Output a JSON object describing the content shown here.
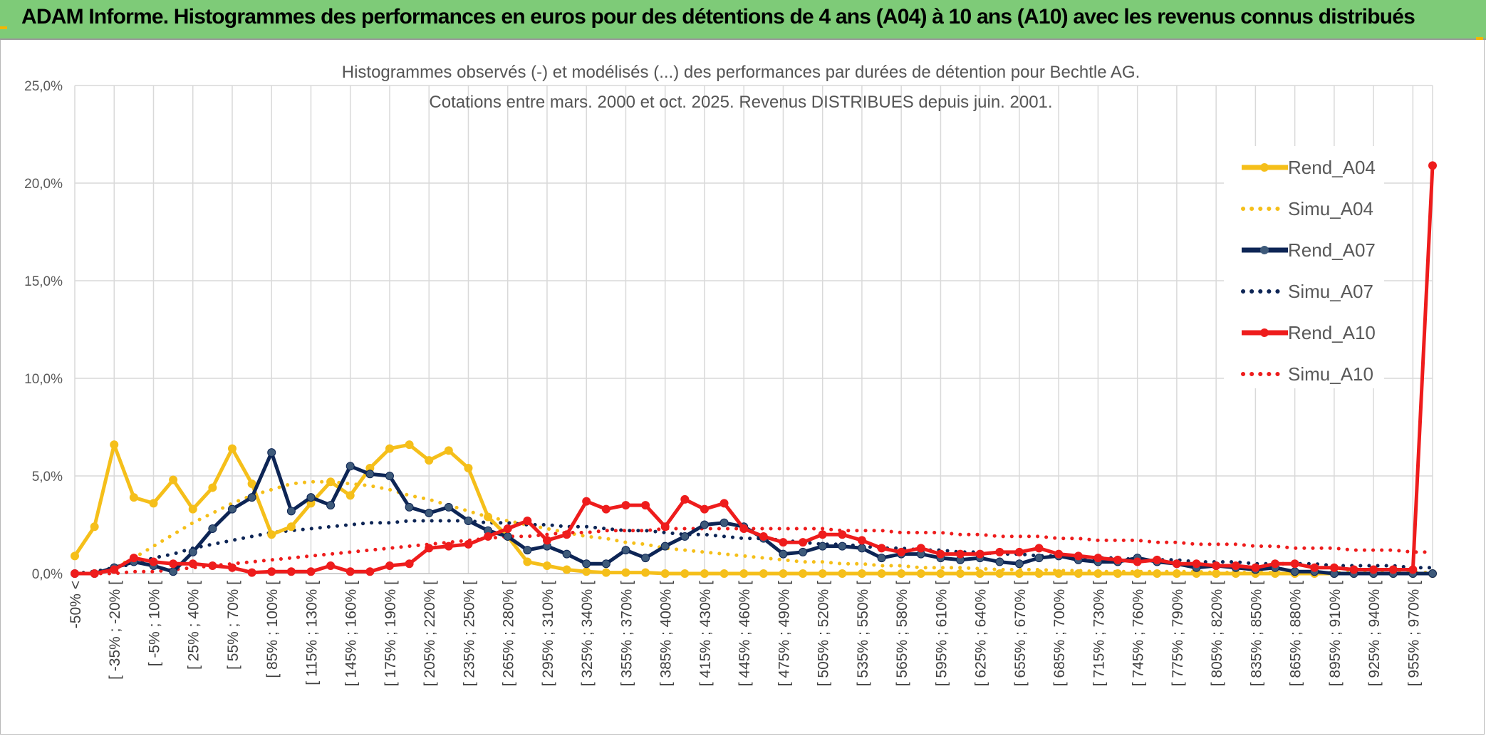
{
  "banner": {
    "title": "ADAM Informe. Histogrammes des performances en euros pour des détentions de 4 ans (A04) à 10 ans (A10) avec les revenus connus distribués"
  },
  "chart_data": {
    "type": "line",
    "title": "Histogrammes observés (-) et modélisés (...) des performances par durées de détention pour Bechtle AG.",
    "subtitle": "Cotations entre mars. 2000 et oct. 2025. Revenus DISTRIBUES depuis juin. 2001.",
    "xlabel": "",
    "ylabel": "",
    "ylim": [
      0,
      25
    ],
    "y_ticks": [
      "0,0%",
      "5,0%",
      "10,0%",
      "15,0%",
      "20,0%",
      "25,0%"
    ],
    "grid": true,
    "legend_position": "right",
    "x_tick_labels": [
      "-50% <",
      "[ -35% ; -20% [",
      "[ -5% ; 10% [",
      "[ 25% ; 40% [",
      "[ 55% ; 70% [",
      "[ 85% ; 100% [",
      "[ 115% ; 130% [",
      "[ 145% ; 160% [",
      "[ 175% ; 190% [",
      "[ 205% ; 220% [",
      "[ 235% ; 250% [",
      "[ 265% ; 280% [",
      "[ 295% ; 310% [",
      "[ 325% ; 340% [",
      "[ 355% ; 370% [",
      "[ 385% ; 400% [",
      "[ 415% ; 430% [",
      "[ 445% ; 460% [",
      "[ 475% ; 490% [",
      "[ 505% ; 520% [",
      "[ 535% ; 550% [",
      "[ 565% ; 580% [",
      "[ 595% ; 610% [",
      "[ 625% ; 640% [",
      "[ 655% ; 670% [",
      "[ 685% ; 700% [",
      "[ 715% ; 730% [",
      "[ 745% ; 760% [",
      "[ 775% ; 790% [",
      "[ 805% ; 820% [",
      "[ 835% ; 850% [",
      "[ 865% ; 880% [",
      "[ 895% ; 910% [",
      "[ 925% ; 940% [",
      "[ 955% ; 970% ["
    ],
    "n_points": 70,
    "series": [
      {
        "name": "Rend_A04",
        "color": "#f5bf1a",
        "style": "solid",
        "markers": true,
        "values": [
          0.9,
          2.4,
          6.6,
          3.9,
          3.6,
          4.8,
          3.3,
          4.4,
          6.4,
          4.6,
          2.0,
          2.4,
          3.6,
          4.7,
          4.0,
          5.4,
          6.4,
          6.6,
          5.8,
          6.3,
          5.4,
          2.9,
          1.9,
          0.6,
          0.4,
          0.2,
          0.1,
          0.05,
          0.05,
          0.05,
          0,
          0,
          0,
          0,
          0,
          0,
          0,
          0,
          0,
          0,
          0,
          0,
          0,
          0,
          0,
          0,
          0,
          0,
          0,
          0,
          0,
          0,
          0,
          0,
          0,
          0,
          0,
          0,
          0,
          0,
          0,
          0,
          0,
          0,
          0,
          0,
          0,
          0,
          0,
          0
        ]
      },
      {
        "name": "Simu_A04",
        "color": "#f5bf1a",
        "style": "dotted",
        "markers": false,
        "values": [
          0,
          0.1,
          0.3,
          0.8,
          1.4,
          2.0,
          2.6,
          3.1,
          3.6,
          4.0,
          4.3,
          4.6,
          4.7,
          4.7,
          4.6,
          4.5,
          4.3,
          4.0,
          3.8,
          3.5,
          3.2,
          2.9,
          2.7,
          2.5,
          2.3,
          2.1,
          1.9,
          1.8,
          1.6,
          1.5,
          1.3,
          1.2,
          1.1,
          1.0,
          0.9,
          0.8,
          0.7,
          0.6,
          0.6,
          0.5,
          0.5,
          0.4,
          0.4,
          0.3,
          0.3,
          0.3,
          0.25,
          0.2,
          0.2,
          0.2,
          0.15,
          0.15,
          0.1,
          0.1,
          0.1,
          0.1,
          0.1,
          0.1,
          0.05,
          0.05,
          0.05,
          0.05,
          0.05,
          0.05,
          0.05,
          0.05,
          0.05,
          0.05,
          0.05,
          0.05
        ]
      },
      {
        "name": "Rend_A07",
        "color": "#0d2555",
        "style": "solid",
        "markers": true,
        "values": [
          0,
          0,
          0.3,
          0.6,
          0.4,
          0.1,
          1.1,
          2.3,
          3.3,
          3.9,
          6.2,
          3.2,
          3.9,
          3.5,
          5.5,
          5.1,
          5.0,
          3.4,
          3.1,
          3.4,
          2.7,
          2.2,
          1.9,
          1.2,
          1.4,
          1.0,
          0.5,
          0.5,
          1.2,
          0.8,
          1.4,
          1.9,
          2.5,
          2.6,
          2.4,
          1.8,
          1.0,
          1.1,
          1.4,
          1.4,
          1.3,
          0.8,
          1.0,
          1.0,
          0.8,
          0.7,
          0.8,
          0.6,
          0.5,
          0.8,
          0.9,
          0.7,
          0.6,
          0.6,
          0.8,
          0.6,
          0.5,
          0.3,
          0.4,
          0.3,
          0.2,
          0.3,
          0.1,
          0.1,
          0,
          0,
          0,
          0,
          0,
          0
        ]
      },
      {
        "name": "Simu_A07",
        "color": "#0d2555",
        "style": "dotted",
        "markers": false,
        "values": [
          0,
          0.1,
          0.3,
          0.5,
          0.8,
          1.0,
          1.3,
          1.5,
          1.7,
          1.9,
          2.1,
          2.2,
          2.3,
          2.4,
          2.5,
          2.6,
          2.6,
          2.7,
          2.7,
          2.7,
          2.7,
          2.6,
          2.6,
          2.5,
          2.5,
          2.4,
          2.4,
          2.3,
          2.2,
          2.2,
          2.1,
          2.0,
          2.0,
          1.9,
          1.8,
          1.8,
          1.7,
          1.6,
          1.5,
          1.5,
          1.4,
          1.3,
          1.3,
          1.2,
          1.2,
          1.1,
          1.1,
          1.0,
          1.0,
          0.9,
          0.9,
          0.8,
          0.8,
          0.8,
          0.7,
          0.7,
          0.7,
          0.6,
          0.6,
          0.6,
          0.5,
          0.5,
          0.5,
          0.5,
          0.4,
          0.4,
          0.4,
          0.4,
          0.3,
          0.3
        ]
      },
      {
        "name": "Rend_A10",
        "color": "#ee1c1c",
        "style": "solid",
        "markers": true,
        "values": [
          0,
          0,
          0.2,
          0.8,
          0.6,
          0.5,
          0.5,
          0.4,
          0.3,
          0.05,
          0.1,
          0.1,
          0.1,
          0.4,
          0.1,
          0.1,
          0.4,
          0.5,
          1.3,
          1.4,
          1.5,
          1.9,
          2.3,
          2.7,
          1.7,
          2.0,
          3.7,
          3.3,
          3.5,
          3.5,
          2.4,
          3.8,
          3.3,
          3.6,
          2.3,
          1.9,
          1.6,
          1.6,
          2.0,
          2.0,
          1.7,
          1.3,
          1.1,
          1.3,
          1.0,
          1.0,
          1.0,
          1.1,
          1.1,
          1.3,
          1.0,
          0.9,
          0.8,
          0.7,
          0.6,
          0.7,
          0.5,
          0.5,
          0.4,
          0.4,
          0.3,
          0.5,
          0.5,
          0.3,
          0.3,
          0.2,
          0.2,
          0.2,
          0.2,
          20.9
        ]
      },
      {
        "name": "Simu_A10",
        "color": "#ee1c1c",
        "style": "dotted",
        "markers": false,
        "values": [
          0,
          0,
          0,
          0.1,
          0.1,
          0.2,
          0.3,
          0.4,
          0.5,
          0.6,
          0.7,
          0.8,
          0.9,
          1.0,
          1.1,
          1.2,
          1.3,
          1.4,
          1.5,
          1.6,
          1.7,
          1.8,
          1.9,
          1.9,
          2.0,
          2.1,
          2.1,
          2.2,
          2.2,
          2.2,
          2.3,
          2.3,
          2.3,
          2.3,
          2.3,
          2.3,
          2.3,
          2.3,
          2.3,
          2.2,
          2.2,
          2.2,
          2.1,
          2.1,
          2.1,
          2.0,
          2.0,
          1.9,
          1.9,
          1.9,
          1.8,
          1.8,
          1.7,
          1.7,
          1.7,
          1.6,
          1.6,
          1.5,
          1.5,
          1.5,
          1.4,
          1.4,
          1.3,
          1.3,
          1.3,
          1.2,
          1.2,
          1.2,
          1.1,
          1.1
        ]
      }
    ]
  }
}
